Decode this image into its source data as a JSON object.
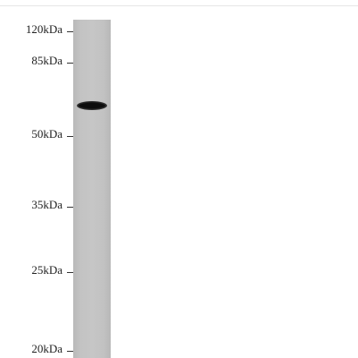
{
  "markers": [
    {
      "label": "120kDa"
    },
    {
      "label": "85kDa"
    },
    {
      "label": "50kDa"
    },
    {
      "label": "35kDa"
    },
    {
      "label": "25kDa"
    },
    {
      "label": "20kDa"
    }
  ],
  "colors": {
    "lane": "#c4c4c4",
    "band": "#0d0d0d",
    "background": "#ffffff"
  }
}
